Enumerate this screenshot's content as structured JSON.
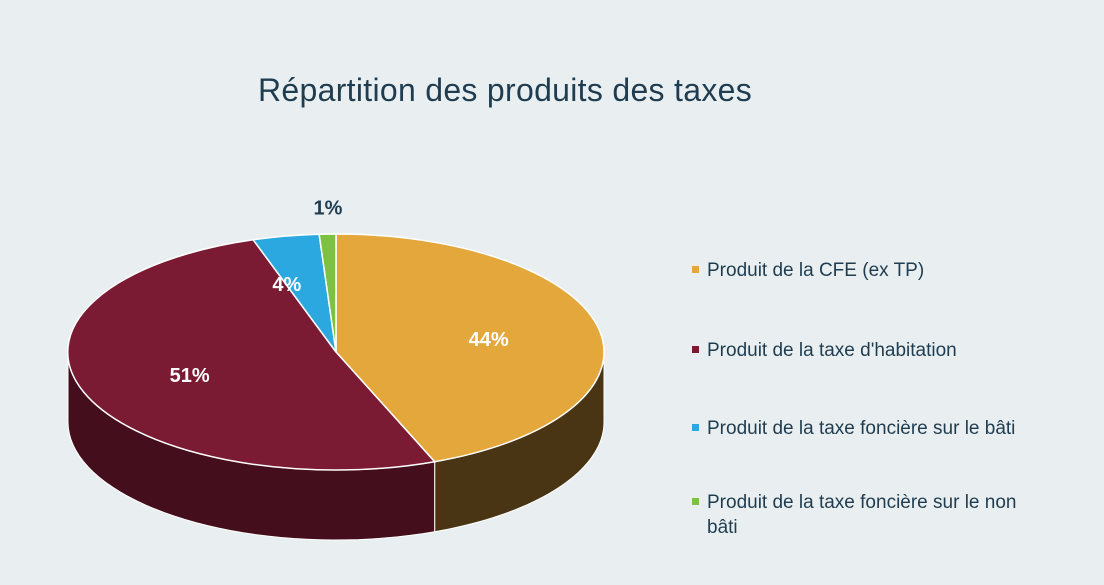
{
  "chart_data": {
    "type": "pie",
    "title": "Répartition des produits des taxes",
    "categories": [
      "Produit de la CFE (ex TP)",
      "Produit de la taxe d'habitation",
      "Produit de la taxe foncière sur le bâti",
      "Produit de la taxe foncière sur le non bâti"
    ],
    "values": [
      44,
      51,
      4,
      1
    ],
    "data_labels": [
      "44%",
      "51%",
      "4%",
      "1%"
    ],
    "colors": [
      "#e4a73c",
      "#7b1a33",
      "#2aa8df",
      "#7cc142"
    ],
    "legend_placement": "right",
    "three_d": true
  },
  "legend": [
    {
      "label": "Produit de la CFE (ex TP)",
      "color": "#e4a73c"
    },
    {
      "label": "Produit de la taxe d'habitation",
      "color": "#7b1a33"
    },
    {
      "label": "Produit de la taxe foncière sur le bâti",
      "color": "#2aa8df"
    },
    {
      "label": "Produit de la taxe foncière sur le non bâti",
      "color": "#7cc142"
    }
  ]
}
